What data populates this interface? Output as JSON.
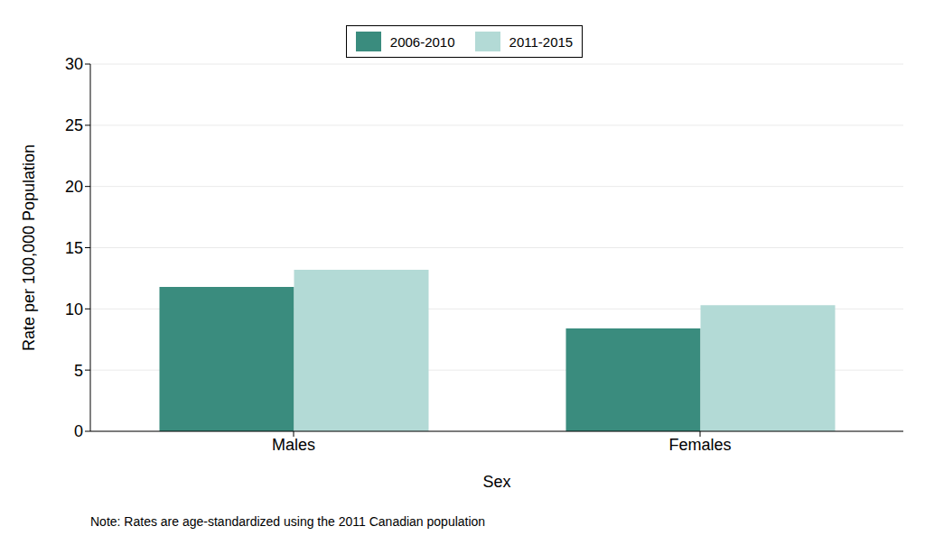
{
  "chart_data": {
    "type": "bar",
    "categories": [
      "Males",
      "Females"
    ],
    "series": [
      {
        "name": "2006-2010",
        "color": "#3a8c7e",
        "values": [
          11.8,
          8.4
        ]
      },
      {
        "name": "2011-2015",
        "color": "#b3dad6",
        "values": [
          13.2,
          10.3
        ]
      }
    ],
    "x_label": "Sex",
    "y_label": "Rate per 100,000 Population",
    "annotations": [
      "Note: Rates are age-standardized using the 2011 Canadian population"
    ],
    "ylim": [
      0,
      30
    ],
    "yticks": [
      0,
      5,
      10,
      15,
      20,
      25,
      30
    ],
    "grid": true,
    "legend": "top"
  }
}
